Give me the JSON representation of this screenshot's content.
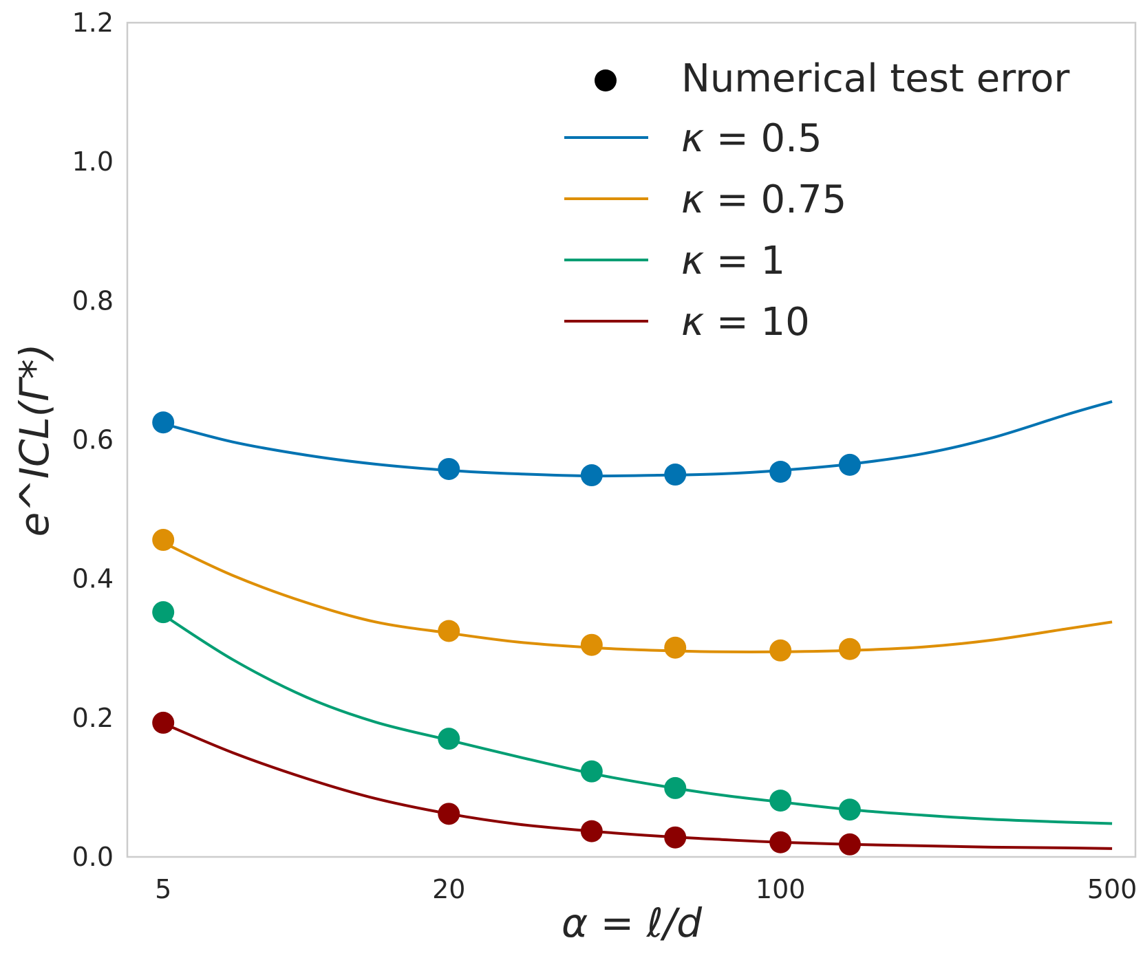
{
  "chart_data": {
    "type": "line",
    "xscale": "log",
    "xlim": [
      4.2,
      560
    ],
    "ylim": [
      0.0,
      1.2
    ],
    "xticks": [
      5,
      20,
      100,
      500
    ],
    "xtick_labels": [
      "5",
      "20",
      "100",
      "500"
    ],
    "yticks": [
      0.0,
      0.2,
      0.4,
      0.6,
      0.8,
      1.0,
      1.2
    ],
    "ytick_labels": [
      "0.0",
      "0.2",
      "0.4",
      "0.6",
      "0.8",
      "1.0",
      "1.2"
    ],
    "xlabel": "α = ℓ/d",
    "ylabel": "e^ICL(Γ*)",
    "grid": false,
    "legend_position": "top-right",
    "legend_marker_label": "Numerical test error",
    "series": [
      {
        "name": "κ = 0.5",
        "kappa_label": "0.5",
        "color": "#0173b2",
        "curve_x": [
          5,
          7,
          10,
          14,
          20,
          28,
          40,
          55,
          75,
          100,
          140,
          200,
          280,
          400,
          500
        ],
        "curve_y": [
          0.623,
          0.597,
          0.578,
          0.565,
          0.556,
          0.551,
          0.548,
          0.549,
          0.551,
          0.556,
          0.565,
          0.58,
          0.603,
          0.636,
          0.655
        ],
        "points_x": [
          5,
          20,
          40,
          60,
          100,
          140
        ],
        "points_y": [
          0.625,
          0.558,
          0.549,
          0.55,
          0.554,
          0.564
        ]
      },
      {
        "name": "κ = 0.75",
        "kappa_label": "0.75",
        "color": "#de8f05",
        "curve_x": [
          5,
          7,
          10,
          14,
          20,
          28,
          40,
          55,
          75,
          100,
          140,
          200,
          280,
          400,
          500
        ],
        "curve_y": [
          0.452,
          0.405,
          0.366,
          0.338,
          0.322,
          0.309,
          0.301,
          0.297,
          0.295,
          0.295,
          0.297,
          0.302,
          0.312,
          0.328,
          0.338
        ],
        "points_x": [
          5,
          20,
          40,
          60,
          100,
          140
        ],
        "points_y": [
          0.456,
          0.325,
          0.305,
          0.301,
          0.297,
          0.299
        ]
      },
      {
        "name": "κ = 1",
        "kappa_label": "1",
        "color": "#029e73",
        "curve_x": [
          5,
          7,
          10,
          14,
          20,
          28,
          40,
          55,
          75,
          100,
          140,
          200,
          280,
          400,
          500
        ],
        "curve_y": [
          0.348,
          0.284,
          0.23,
          0.194,
          0.168,
          0.144,
          0.12,
          0.103,
          0.089,
          0.079,
          0.068,
          0.06,
          0.054,
          0.05,
          0.048
        ],
        "points_x": [
          5,
          20,
          40,
          60,
          100,
          140
        ],
        "points_y": [
          0.352,
          0.17,
          0.123,
          0.099,
          0.081,
          0.068
        ]
      },
      {
        "name": "κ = 10",
        "kappa_label": "10",
        "color": "#8b0000",
        "curve_x": [
          5,
          7,
          10,
          14,
          20,
          28,
          40,
          55,
          75,
          100,
          140,
          200,
          280,
          400,
          500
        ],
        "curve_y": [
          0.192,
          0.15,
          0.113,
          0.084,
          0.062,
          0.047,
          0.037,
          0.03,
          0.025,
          0.021,
          0.018,
          0.016,
          0.014,
          0.013,
          0.012
        ],
        "points_x": [
          5,
          20,
          40,
          60,
          100,
          140
        ],
        "points_y": [
          0.193,
          0.062,
          0.037,
          0.028,
          0.021,
          0.018
        ]
      }
    ]
  }
}
